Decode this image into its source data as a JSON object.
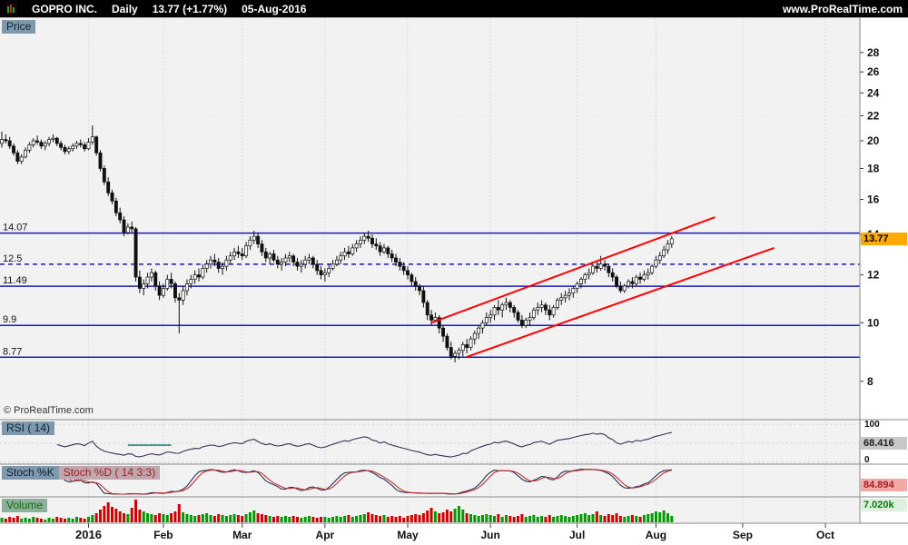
{
  "topbar": {
    "symbol": "GOPRO INC.",
    "timeframe": "Daily",
    "price": "13.77",
    "change": "(+1.77%)",
    "date": "05-Aug-2016",
    "site": "www.ProRealTime.com"
  },
  "panels": {
    "price": {
      "title": "Price",
      "value_label": "13.77"
    },
    "rsi": {
      "title": "RSI ( 14)",
      "value_label": "68.416"
    },
    "stoch": {
      "title_k": "Stoch %K",
      "title_d": "Stoch %D ( 14 3:3)",
      "value_label": "84.894"
    },
    "volume": {
      "title": "Volume",
      "value_label": "7.020k"
    }
  },
  "watermark": "© ProRealTime.com",
  "colors": {
    "level_line": "#1a1ab8",
    "trend_line": "#ff0000",
    "up_candle": "#ffffff",
    "down_candle": "#111111",
    "candle_stroke": "#111111",
    "rsi_line": "#333355",
    "stoch_k": "#223355",
    "stoch_d": "#c03030",
    "vol_up": "#009900",
    "vol_down": "#cc0000",
    "grid": "#dddddd",
    "separator": "#8a8a8a",
    "price_box": "#ffaa00"
  },
  "chart_data": {
    "type": "candlestick",
    "title": "GOPRO INC. Daily",
    "scale": "log",
    "price_axis_ticks": [
      28,
      26,
      24,
      22,
      20,
      18,
      16,
      14,
      12,
      10,
      8
    ],
    "rsi_ticks": [
      100,
      0
    ],
    "levels": [
      {
        "label": "14.07",
        "price": 14.07,
        "style": "solid"
      },
      {
        "label": "12.5",
        "price": 12.5,
        "style": "dashed"
      },
      {
        "label": "11.49",
        "price": 11.49,
        "style": "solid"
      },
      {
        "label": "9.9",
        "price": 9.9,
        "style": "solid"
      },
      {
        "label": "8.77",
        "price": 8.77,
        "style": "solid"
      }
    ],
    "trendlines": [
      {
        "from_day": 109,
        "from_price": 10.0,
        "to_day": 181,
        "to_price": 14.95
      },
      {
        "from_day": 118,
        "from_price": 8.78,
        "to_day": 196,
        "to_price": 13.3
      }
    ],
    "months": [
      {
        "label": "2016",
        "day": 22,
        "bold": true
      },
      {
        "label": "Feb",
        "day": 41
      },
      {
        "label": "Mar",
        "day": 61
      },
      {
        "label": "Apr",
        "day": 82
      },
      {
        "label": "May",
        "day": 103
      },
      {
        "label": "Jun",
        "day": 124
      },
      {
        "label": "Jul",
        "day": 146
      },
      {
        "label": "Aug",
        "day": 166
      },
      {
        "label": "Sep",
        "day": 188
      },
      {
        "label": "Oct",
        "day": 209
      }
    ],
    "days_total": 216,
    "indicators": {
      "rsi_period": 14,
      "rsi_last": 68.416,
      "stoch_period": "14 3:3",
      "stoch_last": 84.894,
      "volume_last": "7.020k"
    },
    "rsi_annotation": {
      "from_day": 32,
      "to_day": 43,
      "value": 45,
      "color": "#1d8a7a"
    },
    "candles": [
      [
        19.8,
        20.7,
        19.5,
        20.1
      ],
      [
        20.1,
        20.5,
        19.8,
        20.0
      ],
      [
        20.0,
        20.3,
        19.4,
        19.6
      ],
      [
        19.6,
        19.8,
        18.9,
        19.1
      ],
      [
        19.1,
        19.3,
        18.3,
        18.5
      ],
      [
        18.5,
        19.0,
        18.3,
        18.8
      ],
      [
        18.8,
        19.5,
        18.7,
        19.3
      ],
      [
        19.3,
        19.9,
        19.1,
        19.7
      ],
      [
        19.7,
        20.2,
        19.5,
        20.0
      ],
      [
        20.0,
        20.4,
        19.7,
        19.9
      ],
      [
        19.9,
        20.1,
        19.4,
        19.6
      ],
      [
        19.6,
        20.0,
        19.3,
        19.8
      ],
      [
        19.8,
        20.3,
        19.6,
        20.1
      ],
      [
        20.1,
        20.5,
        19.9,
        20.2
      ],
      [
        20.2,
        20.3,
        19.6,
        19.8
      ],
      [
        19.8,
        20.0,
        19.3,
        19.5
      ],
      [
        19.5,
        19.7,
        19.0,
        19.2
      ],
      [
        19.2,
        19.6,
        19.0,
        19.4
      ],
      [
        19.4,
        19.8,
        19.2,
        19.6
      ],
      [
        19.6,
        20.0,
        19.4,
        19.8
      ],
      [
        19.8,
        20.1,
        19.5,
        19.7
      ],
      [
        19.7,
        19.9,
        19.2,
        19.4
      ],
      [
        19.4,
        20.2,
        19.3,
        19.9
      ],
      [
        19.9,
        21.2,
        19.7,
        20.3
      ],
      [
        20.3,
        20.4,
        18.9,
        19.1
      ],
      [
        19.1,
        19.3,
        17.8,
        18.0
      ],
      [
        18.0,
        18.2,
        16.9,
        17.1
      ],
      [
        17.1,
        17.4,
        16.2,
        16.4
      ],
      [
        16.4,
        16.6,
        15.7,
        15.9
      ],
      [
        15.9,
        16.1,
        15.0,
        15.2
      ],
      [
        15.2,
        15.5,
        14.6,
        14.8
      ],
      [
        14.8,
        15.0,
        13.9,
        14.1
      ],
      [
        14.1,
        14.6,
        14.0,
        14.4
      ],
      [
        14.4,
        14.7,
        14.1,
        14.3
      ],
      [
        14.3,
        14.4,
        11.7,
        11.9
      ],
      [
        11.9,
        12.2,
        11.2,
        11.4
      ],
      [
        11.4,
        11.8,
        11.1,
        11.6
      ],
      [
        11.6,
        12.1,
        11.4,
        11.9
      ],
      [
        11.9,
        12.3,
        11.7,
        12.1
      ],
      [
        12.1,
        12.2,
        11.3,
        11.5
      ],
      [
        11.5,
        11.7,
        10.9,
        11.1
      ],
      [
        11.1,
        11.6,
        11.0,
        11.4
      ],
      [
        11.4,
        12.0,
        11.3,
        11.8
      ],
      [
        11.8,
        12.1,
        11.4,
        11.6
      ],
      [
        11.6,
        11.7,
        10.8,
        11.0
      ],
      [
        11.0,
        11.2,
        9.6,
        10.9
      ],
      [
        10.9,
        11.5,
        10.7,
        11.3
      ],
      [
        11.3,
        11.8,
        11.1,
        11.6
      ],
      [
        11.6,
        12.0,
        11.4,
        11.8
      ],
      [
        11.8,
        12.2,
        11.6,
        12.0
      ],
      [
        12.0,
        12.3,
        11.7,
        11.9
      ],
      [
        11.9,
        12.5,
        11.8,
        12.3
      ],
      [
        12.3,
        12.7,
        12.1,
        12.5
      ],
      [
        12.5,
        12.9,
        12.3,
        12.7
      ],
      [
        12.7,
        13.0,
        12.4,
        12.6
      ],
      [
        12.6,
        12.8,
        12.1,
        12.3
      ],
      [
        12.3,
        12.6,
        12.0,
        12.4
      ],
      [
        12.4,
        12.9,
        12.2,
        12.7
      ],
      [
        12.7,
        13.1,
        12.5,
        12.9
      ],
      [
        12.9,
        13.3,
        12.7,
        13.1
      ],
      [
        13.1,
        13.4,
        12.8,
        13.0
      ],
      [
        13.0,
        13.3,
        12.7,
        12.9
      ],
      [
        12.9,
        13.6,
        12.8,
        13.4
      ],
      [
        13.4,
        13.9,
        13.2,
        13.7
      ],
      [
        13.7,
        14.2,
        13.5,
        13.9
      ],
      [
        13.9,
        14.1,
        13.3,
        13.5
      ],
      [
        13.5,
        13.7,
        12.9,
        13.1
      ],
      [
        13.1,
        13.3,
        12.6,
        12.8
      ],
      [
        12.8,
        13.1,
        12.5,
        13.0
      ],
      [
        13.0,
        13.2,
        12.6,
        12.7
      ],
      [
        12.7,
        12.9,
        12.3,
        12.5
      ],
      [
        12.5,
        12.8,
        12.2,
        12.6
      ],
      [
        12.6,
        13.0,
        12.4,
        12.8
      ],
      [
        12.8,
        13.1,
        12.6,
        12.9
      ],
      [
        12.9,
        13.0,
        12.4,
        12.6
      ],
      [
        12.6,
        12.8,
        12.2,
        12.4
      ],
      [
        12.4,
        12.7,
        12.1,
        12.5
      ],
      [
        12.5,
        12.9,
        12.3,
        12.7
      ],
      [
        12.7,
        13.0,
        12.5,
        12.8
      ],
      [
        12.8,
        12.9,
        12.3,
        12.5
      ],
      [
        12.5,
        12.7,
        12.0,
        12.2
      ],
      [
        12.2,
        12.4,
        11.8,
        12.0
      ],
      [
        12.0,
        12.3,
        11.7,
        12.1
      ],
      [
        12.1,
        12.5,
        11.9,
        12.3
      ],
      [
        12.3,
        12.7,
        12.2,
        12.5
      ],
      [
        12.5,
        12.9,
        12.4,
        12.7
      ],
      [
        12.7,
        13.1,
        12.5,
        12.9
      ],
      [
        12.9,
        13.3,
        12.7,
        13.1
      ],
      [
        13.1,
        13.4,
        12.8,
        13.0
      ],
      [
        13.0,
        13.5,
        12.9,
        13.3
      ],
      [
        13.3,
        13.7,
        13.1,
        13.5
      ],
      [
        13.5,
        13.9,
        13.3,
        13.7
      ],
      [
        13.7,
        14.1,
        13.5,
        13.9
      ],
      [
        13.9,
        14.2,
        13.6,
        13.8
      ],
      [
        13.8,
        14.0,
        13.3,
        13.5
      ],
      [
        13.5,
        13.8,
        13.2,
        13.4
      ],
      [
        13.4,
        13.6,
        12.9,
        13.1
      ],
      [
        13.1,
        13.5,
        13.0,
        13.3
      ],
      [
        13.3,
        13.4,
        12.8,
        13.0
      ],
      [
        13.0,
        13.2,
        12.6,
        12.8
      ],
      [
        12.8,
        13.0,
        12.4,
        12.6
      ],
      [
        12.6,
        12.8,
        12.2,
        12.4
      ],
      [
        12.4,
        12.6,
        12.0,
        12.2
      ],
      [
        12.2,
        12.4,
        11.8,
        12.0
      ],
      [
        12.0,
        12.1,
        11.5,
        11.7
      ],
      [
        11.7,
        11.9,
        11.3,
        11.5
      ],
      [
        11.5,
        11.6,
        11.1,
        11.3
      ],
      [
        11.3,
        11.5,
        10.6,
        10.8
      ],
      [
        10.8,
        10.9,
        10.1,
        10.3
      ],
      [
        10.3,
        10.5,
        9.9,
        10.1
      ],
      [
        10.1,
        10.4,
        10.0,
        10.2
      ],
      [
        10.2,
        10.3,
        9.6,
        9.8
      ],
      [
        9.8,
        9.9,
        9.3,
        9.5
      ],
      [
        9.5,
        9.6,
        9.0,
        9.1
      ],
      [
        9.1,
        9.3,
        8.7,
        8.8
      ],
      [
        8.8,
        9.0,
        8.6,
        8.9
      ],
      [
        8.9,
        9.1,
        8.7,
        9.0
      ],
      [
        9.0,
        9.3,
        8.8,
        9.2
      ],
      [
        9.2,
        9.4,
        8.9,
        9.1
      ],
      [
        9.1,
        9.5,
        9.0,
        9.4
      ],
      [
        9.4,
        9.7,
        9.2,
        9.6
      ],
      [
        9.6,
        9.9,
        9.4,
        9.8
      ],
      [
        9.8,
        10.1,
        9.6,
        10.0
      ],
      [
        10.0,
        10.4,
        9.9,
        10.2
      ],
      [
        10.2,
        10.5,
        10.0,
        10.3
      ],
      [
        10.3,
        10.7,
        10.1,
        10.6
      ],
      [
        10.6,
        10.9,
        10.3,
        10.5
      ],
      [
        10.5,
        10.8,
        10.2,
        10.7
      ],
      [
        10.7,
        11.0,
        10.5,
        10.8
      ],
      [
        10.8,
        10.9,
        10.4,
        10.6
      ],
      [
        10.6,
        10.7,
        10.2,
        10.4
      ],
      [
        10.4,
        10.5,
        10.0,
        10.1
      ],
      [
        10.1,
        10.3,
        9.8,
        9.9
      ],
      [
        9.9,
        10.2,
        9.8,
        10.1
      ],
      [
        10.1,
        10.4,
        9.9,
        10.2
      ],
      [
        10.2,
        10.6,
        10.1,
        10.5
      ],
      [
        10.5,
        10.8,
        10.3,
        10.6
      ],
      [
        10.6,
        10.9,
        10.4,
        10.7
      ],
      [
        10.7,
        10.8,
        10.3,
        10.5
      ],
      [
        10.5,
        10.7,
        10.1,
        10.3
      ],
      [
        10.3,
        10.7,
        10.2,
        10.6
      ],
      [
        10.6,
        11.0,
        10.5,
        10.9
      ],
      [
        10.9,
        11.2,
        10.7,
        11.0
      ],
      [
        11.0,
        11.3,
        10.8,
        11.1
      ],
      [
        11.1,
        11.4,
        10.9,
        11.2
      ],
      [
        11.2,
        11.5,
        11.0,
        11.4
      ],
      [
        11.4,
        11.7,
        11.2,
        11.6
      ],
      [
        11.6,
        11.9,
        11.4,
        11.8
      ],
      [
        11.8,
        12.1,
        11.6,
        12.0
      ],
      [
        12.0,
        12.3,
        11.8,
        12.1
      ],
      [
        12.1,
        12.5,
        12.0,
        12.4
      ],
      [
        12.4,
        12.6,
        12.1,
        12.3
      ],
      [
        12.3,
        12.9,
        12.2,
        12.5
      ],
      [
        12.5,
        12.7,
        12.2,
        12.4
      ],
      [
        12.4,
        12.5,
        11.9,
        12.1
      ],
      [
        12.1,
        12.3,
        11.7,
        11.9
      ],
      [
        11.9,
        12.0,
        11.4,
        11.5
      ],
      [
        11.5,
        11.7,
        11.2,
        11.3
      ],
      [
        11.3,
        11.6,
        11.2,
        11.5
      ],
      [
        11.5,
        11.8,
        11.4,
        11.7
      ],
      [
        11.7,
        11.9,
        11.4,
        11.6
      ],
      [
        11.6,
        12.0,
        11.5,
        11.9
      ],
      [
        11.9,
        12.1,
        11.6,
        11.8
      ],
      [
        11.8,
        12.2,
        11.7,
        12.0
      ],
      [
        12.0,
        12.3,
        11.8,
        12.1
      ],
      [
        12.1,
        12.5,
        12.0,
        12.4
      ],
      [
        12.4,
        12.9,
        12.3,
        12.7
      ],
      [
        12.7,
        13.1,
        12.5,
        12.9
      ],
      [
        12.9,
        13.4,
        12.8,
        13.2
      ],
      [
        13.2,
        13.7,
        13.0,
        13.5
      ],
      [
        13.5,
        13.9,
        13.3,
        13.77
      ]
    ],
    "volumes": [
      5,
      4,
      6,
      5,
      7,
      4,
      5,
      4,
      6,
      5,
      4,
      3,
      5,
      4,
      6,
      5,
      4,
      5,
      4,
      6,
      5,
      4,
      6,
      8,
      10,
      14,
      18,
      22,
      17,
      15,
      12,
      10,
      9,
      16,
      25,
      14,
      12,
      10,
      9,
      8,
      10,
      9,
      8,
      10,
      12,
      20,
      11,
      9,
      8,
      7,
      8,
      9,
      10,
      8,
      7,
      9,
      8,
      7,
      8,
      9,
      8,
      7,
      9,
      11,
      13,
      10,
      9,
      8,
      7,
      6,
      7,
      6,
      7,
      6,
      7,
      6,
      5,
      6,
      7,
      6,
      5,
      6,
      6,
      5,
      6,
      7,
      6,
      7,
      8,
      6,
      7,
      8,
      9,
      11,
      9,
      8,
      7,
      8,
      6,
      7,
      6,
      7,
      5,
      7,
      8,
      9,
      8,
      10,
      13,
      16,
      12,
      10,
      11,
      14,
      12,
      15,
      18,
      14,
      10,
      9,
      8,
      7,
      8,
      9,
      8,
      7,
      9,
      6,
      8,
      7,
      6,
      7,
      9,
      6,
      7,
      8,
      6,
      7,
      6,
      8,
      6,
      7,
      8,
      7,
      6,
      7,
      8,
      9,
      10,
      8,
      9,
      12,
      8,
      7,
      9,
      8,
      10,
      7,
      6,
      7,
      8,
      7,
      6,
      8,
      9,
      10,
      12,
      11,
      13,
      10,
      7.02
    ]
  }
}
